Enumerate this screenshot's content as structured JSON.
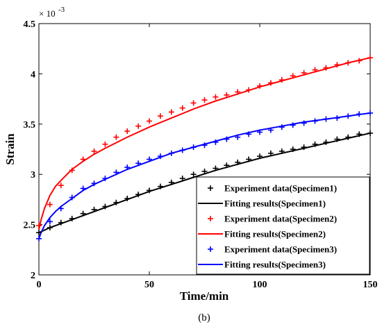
{
  "chart_data": {
    "type": "scatter",
    "xlabel": "Time/min",
    "ylabel": "Strain",
    "y_exponent_label": "-3",
    "y_multiplier_label": "× 10",
    "caption": "(b)",
    "xlim": [
      0,
      150
    ],
    "ylim": [
      2.0,
      4.5
    ],
    "x_ticks": [
      "0",
      "50",
      "100",
      "150"
    ],
    "x_tick_values": [
      0,
      50,
      100,
      150
    ],
    "y_ticks": [
      "2",
      "2.5",
      "3",
      "3.5",
      "4",
      "4.5"
    ],
    "y_tick_values": [
      2.0,
      2.5,
      3.0,
      3.5,
      4.0,
      4.5
    ],
    "grid": false,
    "legend_position": "bottom-right",
    "series": [
      {
        "name": "Experiment data(Specimen1)",
        "kind": "markers",
        "color": "#000000",
        "x": [
          0,
          5,
          10,
          15,
          20,
          25,
          30,
          35,
          40,
          45,
          50,
          55,
          60,
          65,
          70,
          75,
          80,
          85,
          90,
          95,
          100,
          105,
          110,
          115,
          120,
          125,
          130,
          135,
          140,
          145,
          150
        ],
        "y": [
          2.42,
          2.47,
          2.52,
          2.56,
          2.61,
          2.65,
          2.68,
          2.72,
          2.76,
          2.8,
          2.84,
          2.88,
          2.92,
          2.96,
          3.0,
          3.03,
          3.06,
          3.09,
          3.12,
          3.15,
          3.18,
          3.21,
          3.23,
          3.25,
          3.27,
          3.3,
          3.32,
          3.35,
          3.37,
          3.4,
          3.41
        ]
      },
      {
        "name": "Fitting results(Specimen1)",
        "kind": "line",
        "color": "#000000",
        "x": [
          0,
          2,
          5,
          10,
          15,
          20,
          30,
          40,
          50,
          60,
          70,
          80,
          90,
          100,
          110,
          120,
          130,
          140,
          150
        ],
        "y": [
          2.42,
          2.44,
          2.47,
          2.51,
          2.55,
          2.59,
          2.67,
          2.75,
          2.83,
          2.9,
          2.97,
          3.04,
          3.1,
          3.16,
          3.21,
          3.26,
          3.31,
          3.36,
          3.41
        ]
      },
      {
        "name": "Experiment data(Specimen2)",
        "kind": "markers",
        "color": "#ff0000",
        "x": [
          0,
          5,
          10,
          15,
          20,
          25,
          30,
          35,
          40,
          45,
          50,
          55,
          60,
          65,
          70,
          75,
          80,
          85,
          90,
          95,
          100,
          105,
          110,
          115,
          120,
          125,
          130,
          135,
          140,
          145,
          150
        ],
        "y": [
          2.49,
          2.7,
          2.89,
          3.04,
          3.15,
          3.23,
          3.3,
          3.37,
          3.43,
          3.48,
          3.53,
          3.58,
          3.62,
          3.66,
          3.71,
          3.74,
          3.77,
          3.79,
          3.82,
          3.84,
          3.88,
          3.91,
          3.94,
          3.98,
          4.01,
          4.04,
          4.06,
          4.09,
          4.11,
          4.13,
          4.16
        ]
      },
      {
        "name": "Fitting results(Specimen2)",
        "kind": "line",
        "color": "#ff0000",
        "x": [
          0,
          1,
          2.5,
          5,
          7.5,
          10,
          15,
          20,
          25,
          30,
          40,
          50,
          60,
          70,
          80,
          90,
          100,
          110,
          120,
          130,
          140,
          150
        ],
        "y": [
          2.45,
          2.55,
          2.66,
          2.79,
          2.88,
          2.94,
          3.05,
          3.13,
          3.2,
          3.26,
          3.37,
          3.47,
          3.56,
          3.65,
          3.73,
          3.8,
          3.87,
          3.93,
          3.99,
          4.05,
          4.11,
          4.16
        ]
      },
      {
        "name": "Experiment data(Specimen3)",
        "kind": "markers",
        "color": "#0000ff",
        "x": [
          0,
          5,
          10,
          15,
          20,
          25,
          30,
          35,
          40,
          45,
          50,
          55,
          60,
          65,
          70,
          75,
          80,
          85,
          90,
          95,
          100,
          105,
          110,
          115,
          120,
          125,
          130,
          135,
          140,
          145,
          150
        ],
        "y": [
          2.36,
          2.53,
          2.66,
          2.77,
          2.86,
          2.91,
          2.96,
          3.02,
          3.07,
          3.11,
          3.15,
          3.18,
          3.21,
          3.24,
          3.27,
          3.29,
          3.32,
          3.35,
          3.37,
          3.4,
          3.42,
          3.44,
          3.47,
          3.49,
          3.51,
          3.53,
          3.55,
          3.56,
          3.58,
          3.6,
          3.61
        ]
      },
      {
        "name": "Fitting results(Specimen3)",
        "kind": "line",
        "color": "#0000ff",
        "x": [
          0,
          1,
          2.5,
          5,
          7.5,
          10,
          15,
          20,
          25,
          30,
          40,
          50,
          60,
          70,
          80,
          90,
          100,
          110,
          120,
          130,
          140,
          150
        ],
        "y": [
          2.36,
          2.42,
          2.49,
          2.57,
          2.63,
          2.68,
          2.76,
          2.84,
          2.9,
          2.95,
          3.05,
          3.13,
          3.21,
          3.27,
          3.33,
          3.39,
          3.44,
          3.48,
          3.52,
          3.55,
          3.58,
          3.61
        ]
      }
    ]
  }
}
